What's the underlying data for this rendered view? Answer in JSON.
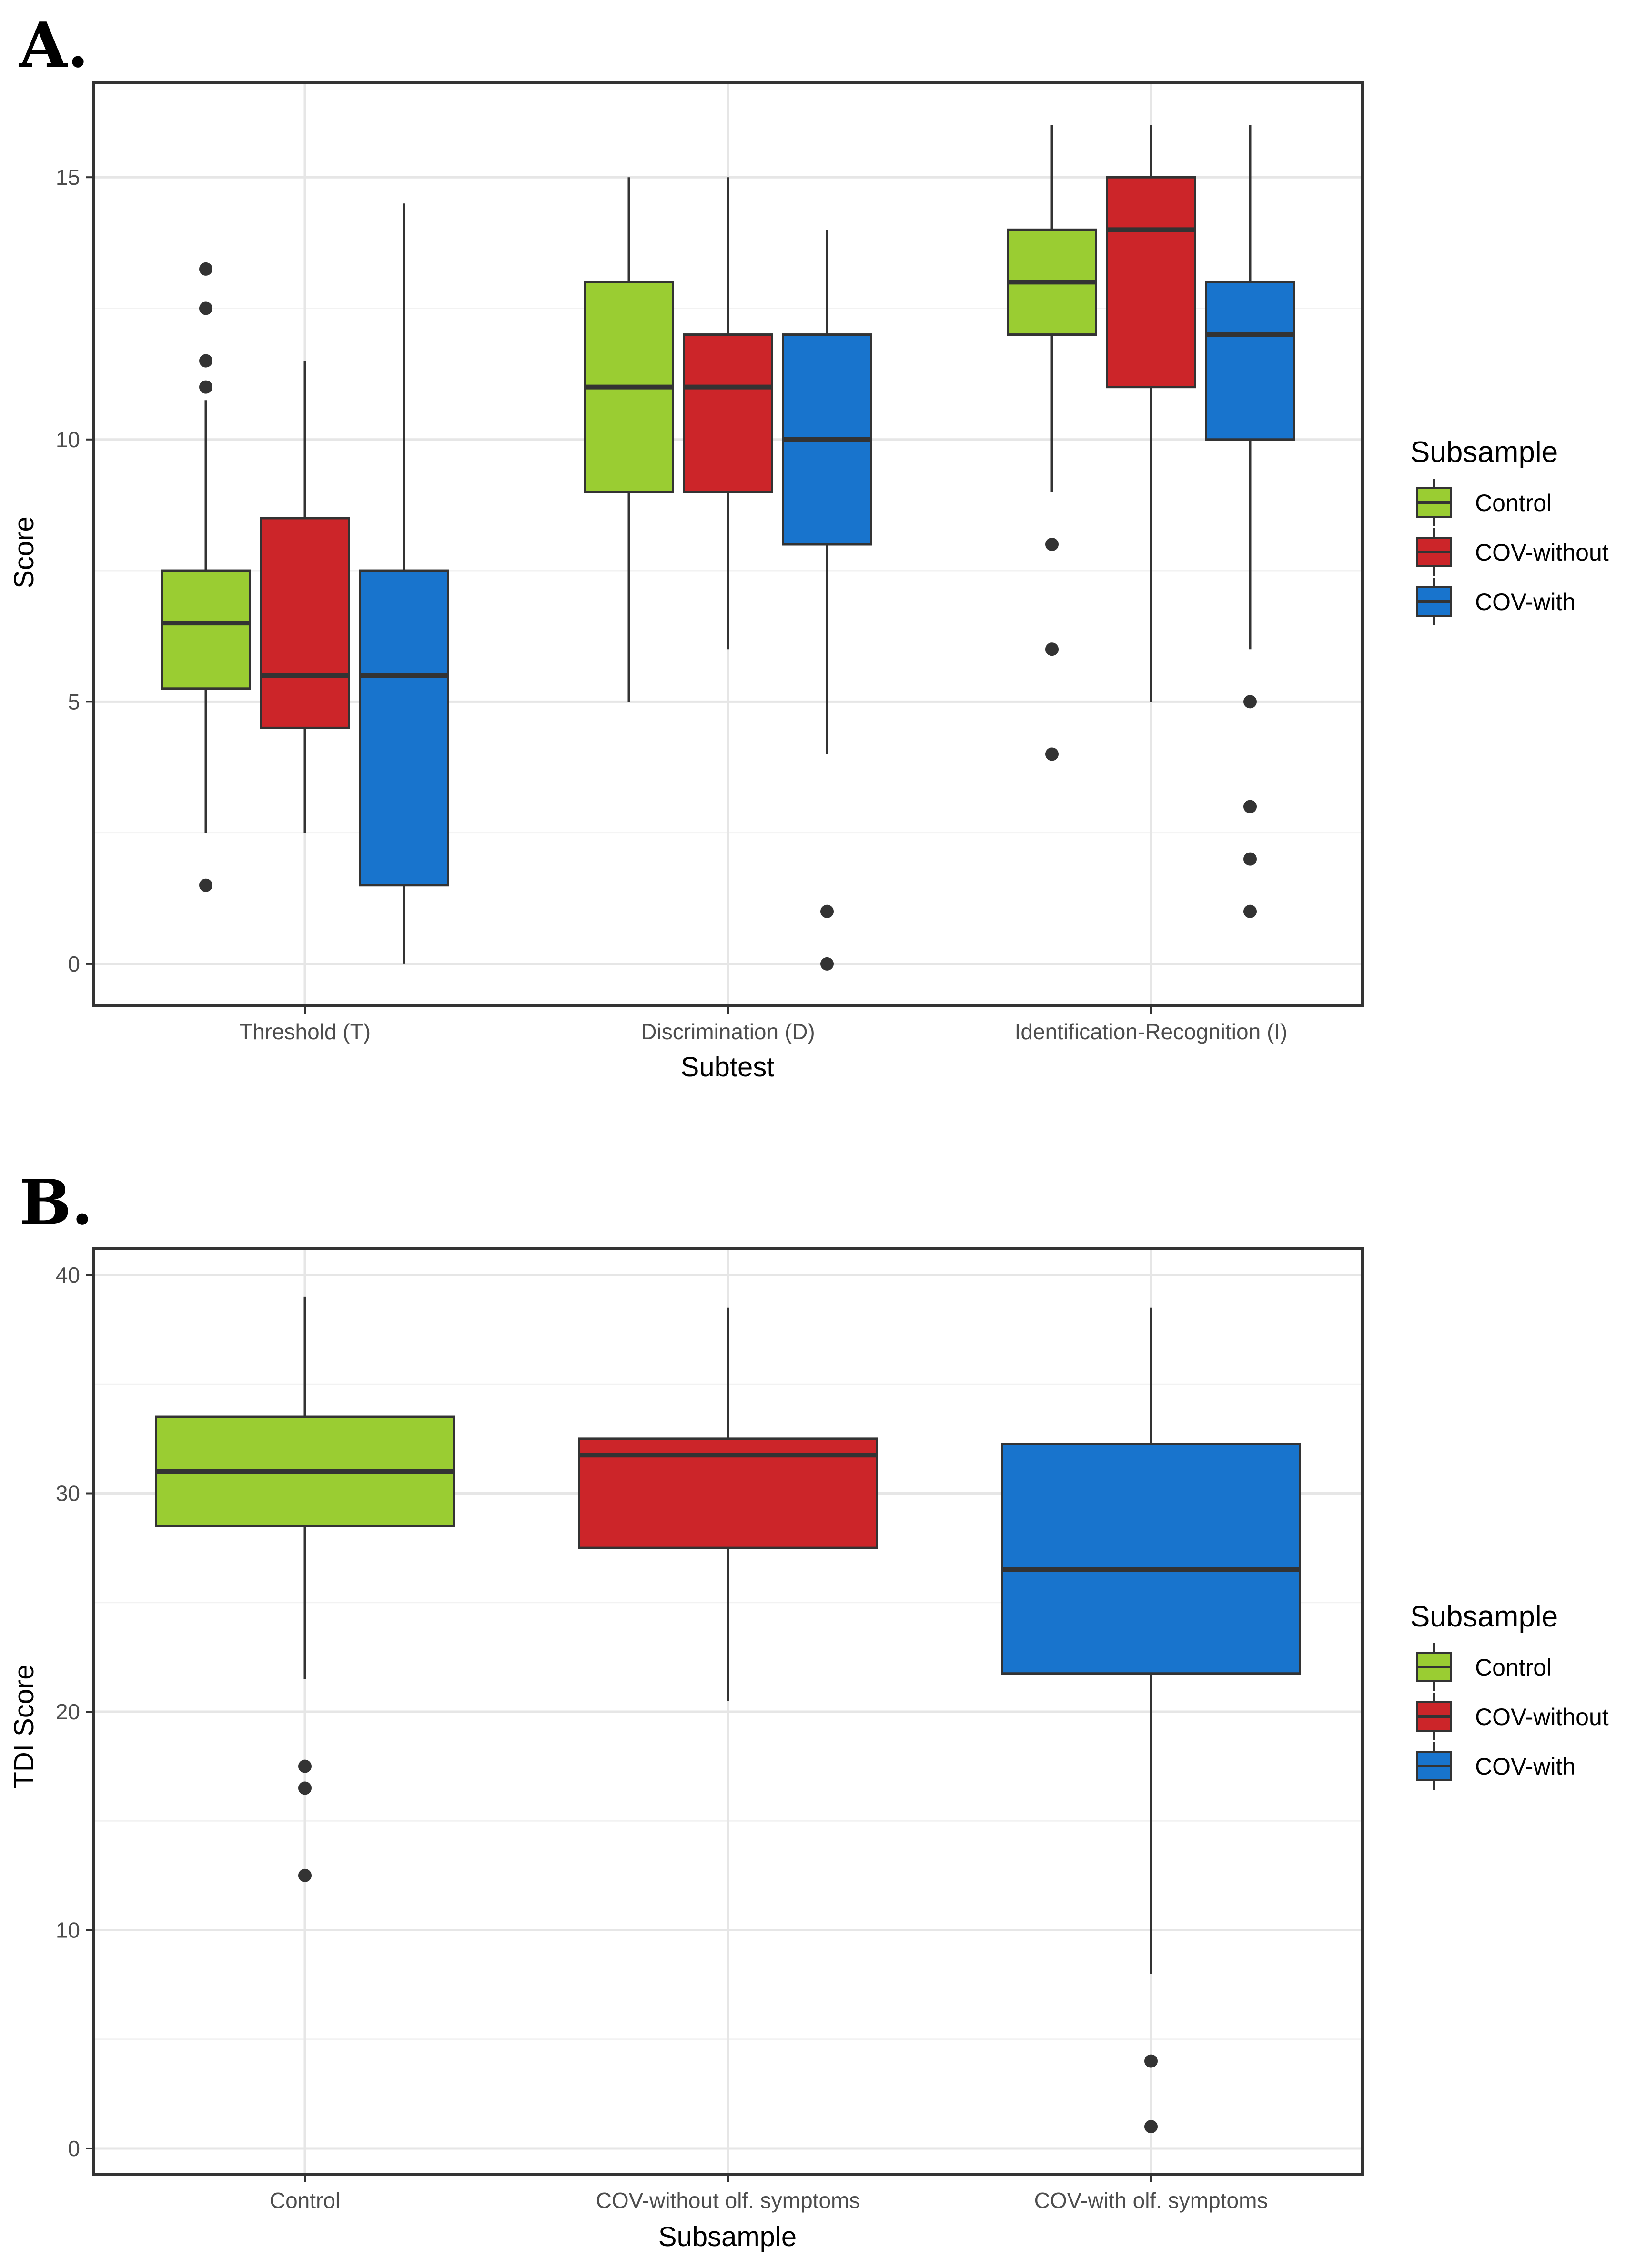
{
  "panel_labels": [
    "A.",
    "B."
  ],
  "colors": {
    "Control": "#9acd32",
    "COV-without": "#cc2529",
    "COV-with": "#1874cd"
  },
  "legend": {
    "title": "Subsample",
    "items": [
      "Control",
      "COV-without",
      "COV-with"
    ]
  },
  "chart_data": [
    {
      "type": "box",
      "xlabel": "Subtest",
      "ylabel": "Score",
      "ylim": [
        -0.8,
        16.8
      ],
      "yticks": [
        0,
        5,
        10,
        15
      ],
      "grid": true,
      "legend_position": "right",
      "categories": [
        "Threshold (T)",
        "Discrimination (D)",
        "Identification-Recognition (I)"
      ],
      "series": [
        {
          "name": "Control",
          "boxes": [
            {
              "min": 2.5,
              "q1": 5.25,
              "median": 6.5,
              "q3": 7.5,
              "max": 10.75,
              "outliers": [
                1.5,
                11,
                11.5,
                12.5,
                13.25
              ]
            },
            {
              "min": 5,
              "q1": 9,
              "median": 11,
              "q3": 13,
              "max": 15,
              "outliers": []
            },
            {
              "min": 9,
              "q1": 12,
              "median": 13,
              "q3": 14,
              "max": 16,
              "outliers": [
                4,
                6,
                8
              ]
            }
          ]
        },
        {
          "name": "COV-without",
          "boxes": [
            {
              "min": 2.5,
              "q1": 4.5,
              "median": 5.5,
              "q3": 8.5,
              "max": 11.5,
              "outliers": []
            },
            {
              "min": 6,
              "q1": 9,
              "median": 11,
              "q3": 12,
              "max": 15,
              "outliers": []
            },
            {
              "min": 5,
              "q1": 11,
              "median": 14,
              "q3": 15,
              "max": 16,
              "outliers": []
            }
          ]
        },
        {
          "name": "COV-with",
          "boxes": [
            {
              "min": 0,
              "q1": 1.5,
              "median": 5.5,
              "q3": 7.5,
              "max": 14.5,
              "outliers": []
            },
            {
              "min": 4,
              "q1": 8,
              "median": 10,
              "q3": 12,
              "max": 14,
              "outliers": [
                0,
                1
              ]
            },
            {
              "min": 6,
              "q1": 10,
              "median": 12,
              "q3": 13,
              "max": 16,
              "outliers": [
                1,
                2,
                3,
                5
              ]
            }
          ]
        }
      ]
    },
    {
      "type": "box",
      "xlabel": "Subsample",
      "ylabel": "TDI Score",
      "ylim": [
        -1.2,
        41.2
      ],
      "yticks": [
        0,
        10,
        20,
        30,
        40
      ],
      "grid": true,
      "legend_position": "right",
      "categories": [
        "Control",
        "COV-without olf. symptoms",
        "COV-with olf. symptoms"
      ],
      "series": [
        {
          "name": "Control",
          "boxes": [
            {
              "min": 21.5,
              "q1": 28.5,
              "median": 31,
              "q3": 33.5,
              "max": 39,
              "outliers": [
                12.5,
                16.5,
                17.5
              ]
            }
          ]
        },
        {
          "name": "COV-without",
          "boxes": [
            {
              "min": 20.5,
              "q1": 27.5,
              "median": 31.75,
              "q3": 32.5,
              "max": 38.5,
              "outliers": []
            }
          ]
        },
        {
          "name": "COV-with",
          "boxes": [
            {
              "min": 8,
              "q1": 21.75,
              "median": 26.5,
              "q3": 32.25,
              "max": 38.5,
              "outliers": [
                1,
                4
              ]
            }
          ]
        }
      ]
    }
  ]
}
